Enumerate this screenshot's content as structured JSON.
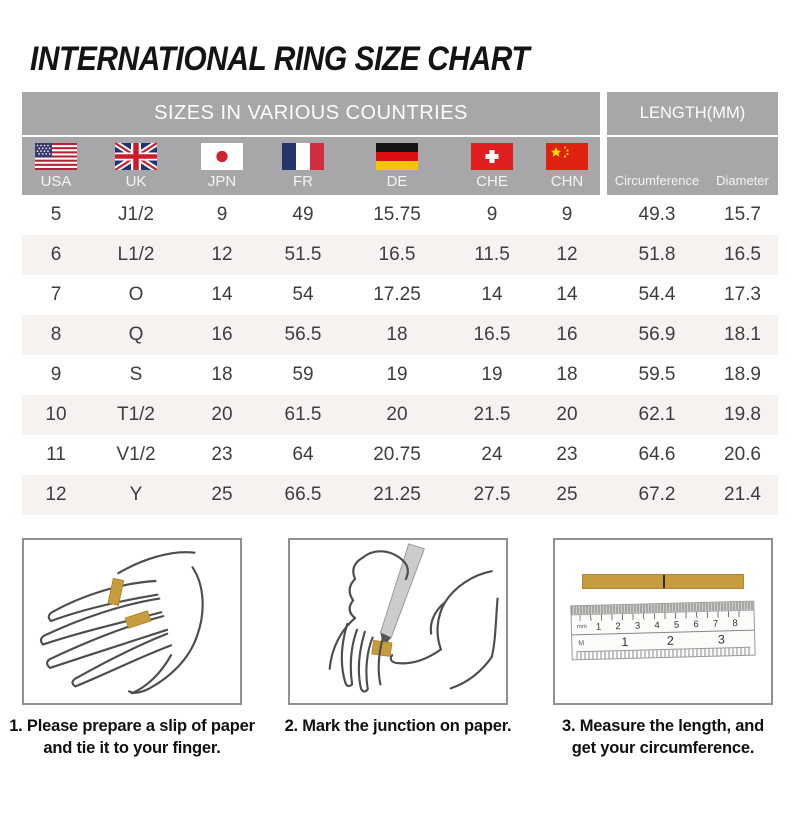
{
  "title": "INTERNATIONAL RING SIZE CHART",
  "table": {
    "group_headers": {
      "left": "SIZES IN VARIOUS COUNTRIES",
      "right": "LENGTH(MM)"
    },
    "columns": [
      {
        "code": "USA",
        "flag": "usa-flag-icon"
      },
      {
        "code": "UK",
        "flag": "uk-flag-icon"
      },
      {
        "code": "JPN",
        "flag": "japan-flag-icon"
      },
      {
        "code": "FR",
        "flag": "france-flag-icon"
      },
      {
        "code": "DE",
        "flag": "germany-flag-icon"
      },
      {
        "code": "CHE",
        "flag": "switzerland-flag-icon"
      },
      {
        "code": "CHN",
        "flag": "china-flag-icon"
      }
    ],
    "length_columns": [
      "Circumference",
      "Diameter"
    ]
  },
  "chart_data": {
    "type": "table",
    "title": "INTERNATIONAL RING SIZE CHART",
    "section_headers": [
      "SIZES IN VARIOUS COUNTRIES",
      "LENGTH(MM)"
    ],
    "columns": [
      "USA",
      "UK",
      "JPN",
      "FR",
      "DE",
      "CHE",
      "CHN",
      "Circumference",
      "Diameter"
    ],
    "rows": [
      [
        5,
        "J1/2",
        9,
        49,
        15.75,
        9,
        9,
        49.3,
        15.7
      ],
      [
        6,
        "L1/2",
        12,
        51.5,
        16.5,
        11.5,
        12,
        51.8,
        16.5
      ],
      [
        7,
        "O",
        14,
        54,
        17.25,
        14,
        14,
        54.4,
        17.3
      ],
      [
        8,
        "Q",
        16,
        56.5,
        18,
        16.5,
        16,
        56.9,
        18.1
      ],
      [
        9,
        "S",
        18,
        59,
        19,
        19,
        18,
        59.5,
        18.9
      ],
      [
        10,
        "T1/2",
        20,
        61.5,
        20,
        21.5,
        20,
        62.1,
        19.8
      ],
      [
        11,
        "V1/2",
        23,
        64,
        20.75,
        24,
        23,
        64.6,
        20.6
      ],
      [
        12,
        "Y",
        25,
        66.5,
        21.25,
        27.5,
        25,
        67.2,
        21.4
      ]
    ]
  },
  "steps": [
    {
      "illustration": "hand-with-paper-slip-illustration",
      "caption_lines": [
        "1. Please prepare a slip of paper",
        "and tie it to your finger."
      ]
    },
    {
      "illustration": "mark-junction-illustration",
      "caption_lines": [
        "2. Mark the junction on paper."
      ]
    },
    {
      "illustration": "ruler-measurement-illustration",
      "caption_lines": [
        "3. Measure the length, and",
        "get your circumference."
      ],
      "ruler": {
        "cm_numbers": [
          "1",
          "2",
          "3",
          "4",
          "5",
          "6",
          "7",
          "8"
        ],
        "inch_numbers": [
          "1",
          "2",
          "3"
        ],
        "unit_label_top": "mm",
        "unit_label_bottom": "M"
      }
    }
  ],
  "colors": {
    "header_gray": "#a7a7a9",
    "shaded_row": "#f6f2ef",
    "paper_strip_gold": "#c79c3e",
    "text_dark": "#3d3d3d"
  }
}
